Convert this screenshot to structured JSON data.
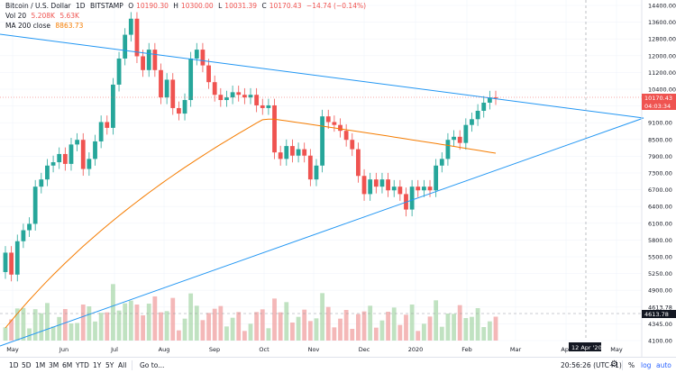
{
  "chart_data": {
    "type": "candlestick",
    "title": "Bitcoin / U.S. Dollar",
    "interval": "1D",
    "exchange": "BITSTAMP",
    "ohlc": {
      "o_label": "O",
      "o": "10190.30",
      "h_label": "H",
      "h": "10300.00",
      "l_label": "L",
      "l": "10031.39",
      "c_label": "C",
      "c": "10170.43",
      "change": "−14.74 (−0.14%)"
    },
    "indicators": [
      {
        "name": "Vol 20",
        "values": [
          "5.208K",
          "5.63K"
        ]
      },
      {
        "name": "MA 200 close",
        "values": [
          "8863.73"
        ]
      }
    ],
    "y_ticks": [
      "14400.00",
      "13600.00",
      "12800.00",
      "12000.00",
      "11200.00",
      "10400.00",
      "9700.00",
      "9100.00",
      "8500.00",
      "7900.00",
      "7300.00",
      "6700.00",
      "6400.00",
      "6100.00",
      "5800.00",
      "5500.00",
      "5250.00",
      "4900.00",
      "4613.78",
      "4345.00",
      "4100.00"
    ],
    "x_ticks": [
      "May",
      "Jun",
      "Jul",
      "Aug",
      "Sep",
      "Oct",
      "Nov",
      "Dec",
      "2020",
      "Feb",
      "Mar",
      "Apr",
      "May"
    ],
    "price_tag": "10170.43",
    "countdown_tag": "04:03:34",
    "volume_tag": "4613.78",
    "crosshair_date": "12 Apr '20",
    "daily": [
      [
        "May",
        5300,
        5700
      ],
      [
        "May",
        5700,
        5250
      ],
      [
        "May",
        5250,
        5950
      ],
      [
        "May",
        5950,
        6200
      ],
      [
        "May",
        6200,
        6350
      ],
      [
        "May",
        6350,
        7300
      ],
      [
        "May",
        7300,
        7500
      ],
      [
        "May",
        7500,
        7900
      ],
      [
        "May",
        7900,
        8000
      ],
      [
        "May",
        8000,
        8250
      ],
      [
        "May",
        8250,
        7950
      ],
      [
        "May",
        7950,
        8550
      ],
      [
        "Jun",
        8550,
        8700
      ],
      [
        "Jun",
        8700,
        7800
      ],
      [
        "Jun",
        7800,
        8100
      ],
      [
        "Jun",
        8100,
        8650
      ],
      [
        "Jun",
        8650,
        9300
      ],
      [
        "Jun",
        9300,
        9100
      ],
      [
        "Jun",
        9100,
        10700
      ],
      [
        "Jun",
        10700,
        11800
      ],
      [
        "Jun",
        11800,
        12900
      ],
      [
        "Jun",
        12900,
        13700
      ],
      [
        "Jun",
        13700,
        11900
      ],
      [
        "Jul",
        11900,
        11300
      ],
      [
        "Jul",
        11300,
        12200
      ],
      [
        "Jul",
        12200,
        11300
      ],
      [
        "Jul",
        11300,
        10200
      ],
      [
        "Jul",
        10200,
        10900
      ],
      [
        "Jul",
        10900,
        9800
      ],
      [
        "Jul",
        9800,
        9600
      ],
      [
        "Jul",
        9600,
        10100
      ],
      [
        "Aug",
        10100,
        11800
      ],
      [
        "Aug",
        11800,
        12200
      ],
      [
        "Aug",
        12200,
        11500
      ],
      [
        "Aug",
        11500,
        10800
      ],
      [
        "Aug",
        10800,
        10300
      ],
      [
        "Aug",
        10300,
        10100
      ],
      [
        "Aug",
        10100,
        10200
      ],
      [
        "Aug",
        10200,
        10400
      ],
      [
        "Sep",
        10400,
        10300
      ],
      [
        "Sep",
        10300,
        10200
      ],
      [
        "Sep",
        10200,
        10300
      ],
      [
        "Sep",
        10300,
        9900
      ],
      [
        "Sep",
        9900,
        9800
      ],
      [
        "Sep",
        9800,
        9900
      ],
      [
        "Oct",
        9900,
        8300
      ],
      [
        "Oct",
        8300,
        8100
      ],
      [
        "Oct",
        8100,
        8500
      ],
      [
        "Oct",
        8500,
        8200
      ],
      [
        "Oct",
        8200,
        8400
      ],
      [
        "Oct",
        8400,
        8200
      ],
      [
        "Oct",
        8200,
        7500
      ],
      [
        "Oct",
        7500,
        7900
      ],
      [
        "Oct",
        7900,
        9500
      ],
      [
        "Nov",
        9500,
        9300
      ],
      [
        "Nov",
        9300,
        9200
      ],
      [
        "Nov",
        9200,
        9000
      ],
      [
        "Nov",
        9000,
        8700
      ],
      [
        "Nov",
        8700,
        8400
      ],
      [
        "Nov",
        8400,
        7600
      ],
      [
        "Nov",
        7600,
        7100
      ],
      [
        "Dec",
        7100,
        7500
      ],
      [
        "Dec",
        7500,
        7300
      ],
      [
        "Dec",
        7300,
        7500
      ],
      [
        "Dec",
        7500,
        7200
      ],
      [
        "Dec",
        7200,
        7300
      ],
      [
        "Dec",
        7300,
        7100
      ],
      [
        "Dec",
        7100,
        6700
      ],
      [
        "Dec",
        6700,
        7300
      ],
      [
        "Dec",
        7300,
        7200
      ],
      [
        "2020",
        7200,
        7300
      ],
      [
        "2020",
        7300,
        7200
      ],
      [
        "2020",
        7200,
        7900
      ],
      [
        "2020",
        7900,
        8100
      ],
      [
        "2020",
        8100,
        8700
      ],
      [
        "2020",
        8700,
        8800
      ],
      [
        "2020",
        8800,
        8600
      ],
      [
        "2020",
        8600,
        9200
      ],
      [
        "2020",
        9200,
        9400
      ],
      [
        "Feb",
        9400,
        9700
      ],
      [
        "Feb",
        9700,
        10000
      ],
      [
        "Feb",
        10000,
        10200
      ],
      [
        "Feb",
        10200,
        10170
      ]
    ]
  },
  "toolbar": {
    "timeframes": [
      "1D",
      "5D",
      "1M",
      "3M",
      "6M",
      "YTD",
      "1Y",
      "5Y",
      "All"
    ],
    "goto": "Go to...",
    "clock": "20:56:26 (UTC+1)",
    "percent": "%",
    "log": "log",
    "auto": "auto"
  },
  "colors": {
    "up": "#26a69a",
    "down": "#ef5350",
    "ma": "#f57c00",
    "trend": "#2196f3",
    "vol_up": "#a5d6a7",
    "vol_down": "#ef9a9a"
  }
}
